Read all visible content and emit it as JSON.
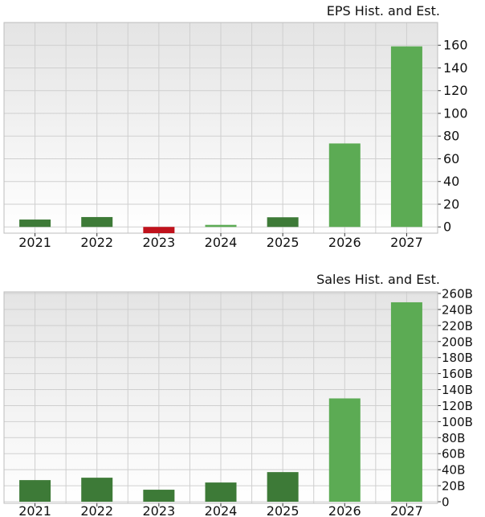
{
  "colors": {
    "historical": "#3d7a37",
    "estimate": "#5cab54",
    "negative": "#c0121c",
    "plot_top": "#e4e4e4",
    "plot_bottom": "#ffffff"
  },
  "chart_data": [
    {
      "type": "bar",
      "title": "EPS Hist. and Est.",
      "categories": [
        "2021",
        "2022",
        "2023",
        "2024",
        "2025",
        "2026",
        "2027"
      ],
      "values": [
        6.5,
        8.7,
        -5.5,
        1.8,
        8.5,
        73.5,
        159.0
      ],
      "bar_kind": [
        "historical",
        "historical",
        "negative",
        "estimate",
        "historical",
        "estimate",
        "estimate"
      ],
      "yticks": [
        0,
        20,
        40,
        60,
        80,
        100,
        120,
        140,
        160
      ],
      "ytick_labels": [
        "0",
        "20",
        "40",
        "60",
        "80",
        "100",
        "120",
        "140",
        "160"
      ],
      "ylim": [
        -5.5,
        180
      ],
      "grid": true,
      "y_axis_side": "right"
    },
    {
      "type": "bar",
      "title": "Sales Hist. and Est.",
      "categories": [
        "2021",
        "2022",
        "2023",
        "2024",
        "2025",
        "2026",
        "2027"
      ],
      "values": [
        27,
        30,
        15,
        24,
        37,
        129,
        249
      ],
      "unit": "B",
      "bar_kind": [
        "historical",
        "historical",
        "historical",
        "historical",
        "historical",
        "estimate",
        "estimate"
      ],
      "yticks": [
        0,
        20,
        40,
        60,
        80,
        100,
        120,
        140,
        160,
        180,
        200,
        220,
        240,
        260
      ],
      "ytick_labels": [
        "0",
        "20B",
        "40B",
        "60B",
        "80B",
        "100B",
        "120B",
        "140B",
        "160B",
        "180B",
        "200B",
        "220B",
        "240B",
        "260B"
      ],
      "ylim": [
        -2,
        262
      ],
      "grid": true,
      "y_axis_side": "right"
    }
  ]
}
